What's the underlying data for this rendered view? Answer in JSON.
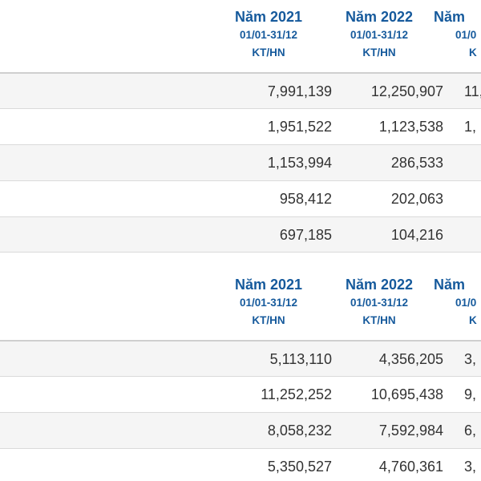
{
  "section1": {
    "headers": [
      {
        "year": "Năm 2021",
        "range": "01/01-31/12",
        "unit": "KT/HN"
      },
      {
        "year": "Năm 2022",
        "range": "01/01-31/12",
        "unit": "KT/HN"
      },
      {
        "year": "Năm",
        "range": "01/0",
        "unit": "K"
      }
    ],
    "rows": [
      {
        "v2021": "7,991,139",
        "v2022": "12,250,907",
        "v_next": "11,"
      },
      {
        "v2021": "1,951,522",
        "v2022": "1,123,538",
        "v_next": "1,"
      },
      {
        "v2021": "1,153,994",
        "v2022": "286,533",
        "v_next": ""
      },
      {
        "v2021": "958,412",
        "v2022": "202,063",
        "v_next": ""
      },
      {
        "v2021": "697,185",
        "v2022": "104,216",
        "v_next": ""
      }
    ]
  },
  "section2": {
    "headers": [
      {
        "year": "Năm 2021",
        "range": "01/01-31/12",
        "unit": "KT/HN"
      },
      {
        "year": "Năm 2022",
        "range": "01/01-31/12",
        "unit": "KT/HN"
      },
      {
        "year": "Năm",
        "range": "01/0",
        "unit": "K"
      }
    ],
    "rows": [
      {
        "v2021": "5,113,110",
        "v2022": "4,356,205",
        "v_next": "3,"
      },
      {
        "v2021": "11,252,252",
        "v2022": "10,695,438",
        "v_next": "9,"
      },
      {
        "v2021": "8,058,232",
        "v2022": "7,592,984",
        "v_next": "6,"
      },
      {
        "v2021": "5,350,527",
        "v2022": "4,760,361",
        "v_next": "3,"
      }
    ]
  }
}
